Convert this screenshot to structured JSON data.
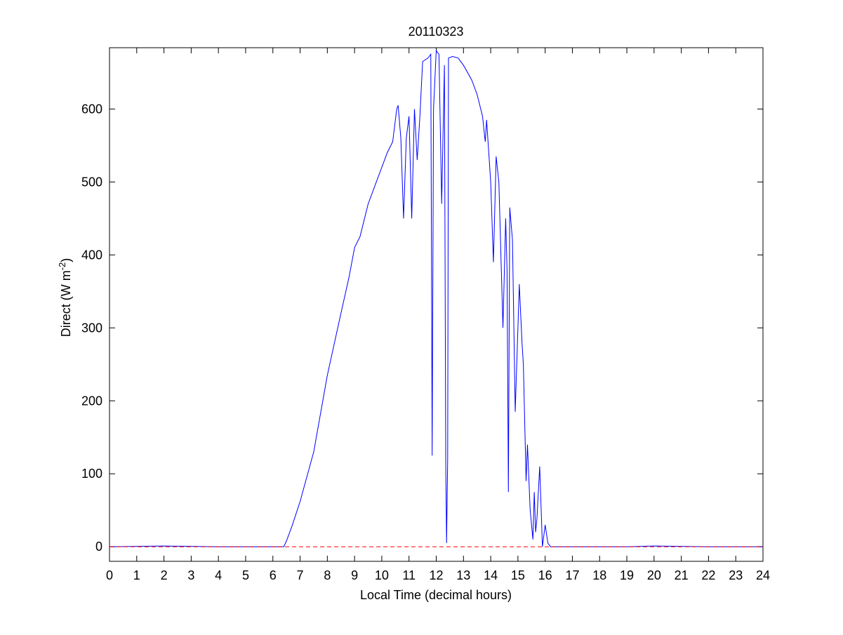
{
  "chart_data": {
    "type": "line",
    "title": "20110323",
    "xlabel": "Local Time (decimal hours)",
    "ylabel": {
      "text": "Direct (W m",
      "sup": "-2",
      "end": ")"
    },
    "xlim": [
      0,
      24
    ],
    "ylim": [
      -20,
      684
    ],
    "xticks": [
      0,
      1,
      2,
      3,
      4,
      5,
      6,
      7,
      8,
      9,
      10,
      11,
      12,
      13,
      14,
      15,
      16,
      17,
      18,
      19,
      20,
      21,
      22,
      23,
      24
    ],
    "yticks": [
      0,
      100,
      200,
      300,
      400,
      500,
      600
    ],
    "series": [
      {
        "color": "#0000ff",
        "dash": "solid",
        "x": [
          0,
          2,
          4,
          6,
          6.4,
          6.5,
          6.7,
          7,
          7.5,
          8,
          8.5,
          8.8,
          9,
          9.2,
          9.5,
          9.7,
          10,
          10.2,
          10.4,
          10.55,
          10.6,
          10.7,
          10.8,
          10.9,
          11.0,
          11.1,
          11.2,
          11.3,
          11.4,
          11.5,
          11.7,
          11.8,
          11.85,
          11.9,
          12.0,
          12.1,
          12.2,
          12.3,
          12.35,
          12.38,
          12.42,
          12.45,
          12.6,
          12.8,
          13,
          13.3,
          13.5,
          13.7,
          13.8,
          13.85,
          14.0,
          14.1,
          14.2,
          14.3,
          14.45,
          14.55,
          14.6,
          14.65,
          14.7,
          14.8,
          14.9,
          15.0,
          15.05,
          15.15,
          15.2,
          15.3,
          15.35,
          15.45,
          15.55,
          15.6,
          15.65,
          15.7,
          15.8,
          15.9,
          16.0,
          16.1,
          16.2,
          17,
          19,
          20,
          22,
          24
        ],
        "values": [
          0,
          1,
          0,
          0,
          0,
          8,
          28,
          62,
          130,
          235,
          320,
          370,
          410,
          425,
          470,
          490,
          520,
          540,
          555,
          600,
          605,
          560,
          450,
          560,
          590,
          450,
          600,
          530,
          590,
          665,
          670,
          675,
          125,
          600,
          680,
          675,
          470,
          660,
          110,
          5,
          120,
          670,
          672,
          670,
          660,
          640,
          620,
          590,
          555,
          585,
          500,
          390,
          535,
          500,
          300,
          450,
          380,
          75,
          465,
          420,
          185,
          300,
          360,
          280,
          250,
          90,
          140,
          50,
          10,
          75,
          20,
          40,
          110,
          0,
          30,
          5,
          0,
          0,
          0,
          1,
          0,
          0
        ]
      },
      {
        "color": "#ff0000",
        "dash": "dashed",
        "x": [
          0,
          24
        ],
        "values": [
          0,
          0
        ]
      }
    ]
  }
}
